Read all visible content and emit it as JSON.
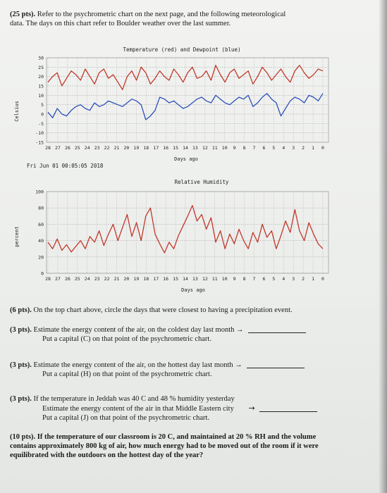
{
  "intro": {
    "points": "(25 pts).",
    "line1": "Refer to the psychrometric chart on the next page, and the following meteorological",
    "line2": "data.  The days on this chart refer to Boulder weather over the last summer."
  },
  "timestamp": "Fri Jun 01 00:05:05 2018",
  "chart_data": [
    {
      "type": "line",
      "title": "Temperature (red) and Dewpoint (blue)",
      "xlabel": "Days ago",
      "ylabel": "Celsius",
      "x_ticks": [
        "28",
        "27",
        "26",
        "25",
        "24",
        "23",
        "22",
        "21",
        "20",
        "19",
        "18",
        "17",
        "16",
        "15",
        "14",
        "13",
        "12",
        "11",
        "10",
        "9",
        "8",
        "7",
        "6",
        "5",
        "4",
        "3",
        "2",
        "1",
        "0"
      ],
      "y_ticks": [
        "30",
        "25",
        "20",
        "15",
        "10",
        "5",
        "0",
        "-5",
        "-10",
        "-15"
      ],
      "ylim": [
        -15,
        30
      ],
      "grid": true,
      "colors": {
        "temperature": "#c0392b",
        "dewpoint": "#2c4fb8"
      },
      "series": [
        {
          "name": "Temperature",
          "color": "#c0392b",
          "values": [
            17,
            20,
            22,
            15,
            19,
            23,
            21,
            18,
            24,
            20,
            16,
            22,
            24,
            19,
            21,
            17,
            13,
            20,
            23,
            18,
            25,
            22,
            16,
            19,
            23,
            20,
            18,
            24,
            21,
            17,
            22,
            25,
            19,
            20,
            23,
            18,
            26,
            21,
            17,
            22,
            24,
            19,
            21,
            23,
            16,
            20,
            25,
            22,
            18,
            21,
            24,
            20,
            17,
            23,
            26,
            22,
            19,
            21,
            24,
            23
          ]
        },
        {
          "name": "Dewpoint",
          "color": "#2c4fb8",
          "values": [
            1,
            -2,
            3,
            0,
            -1,
            2,
            4,
            5,
            3,
            2,
            6,
            4,
            5,
            7,
            6,
            5,
            4,
            6,
            8,
            7,
            5,
            -3,
            -1,
            2,
            9,
            8,
            6,
            7,
            5,
            3,
            4,
            6,
            8,
            9,
            7,
            6,
            10,
            8,
            6,
            5,
            7,
            9,
            8,
            10,
            4,
            6,
            9,
            11,
            8,
            6,
            -1,
            3,
            7,
            9,
            8,
            6,
            10,
            9,
            7,
            11
          ]
        }
      ]
    },
    {
      "type": "line",
      "title": "Relative Humidity",
      "xlabel": "Days ago",
      "ylabel": "percent",
      "x_ticks": [
        "28",
        "27",
        "26",
        "25",
        "24",
        "23",
        "22",
        "21",
        "20",
        "19",
        "18",
        "17",
        "16",
        "15",
        "14",
        "13",
        "12",
        "11",
        "10",
        "9",
        "8",
        "7",
        "6",
        "5",
        "4",
        "3",
        "2",
        "1",
        "0"
      ],
      "y_ticks": [
        "100",
        "80",
        "60",
        "40",
        "20",
        "0"
      ],
      "ylim": [
        0,
        100
      ],
      "grid": true,
      "series": [
        {
          "name": "Relative Humidity",
          "color": "#c0392b",
          "values": [
            38,
            30,
            42,
            28,
            35,
            26,
            33,
            40,
            30,
            45,
            38,
            52,
            34,
            48,
            60,
            40,
            56,
            72,
            45,
            62,
            40,
            70,
            80,
            48,
            36,
            25,
            38,
            30,
            46,
            58,
            70,
            83,
            64,
            72,
            54,
            68,
            38,
            52,
            30,
            48,
            36,
            54,
            40,
            30,
            50,
            38,
            60,
            44,
            52,
            30,
            46,
            64,
            50,
            78,
            52,
            40,
            62,
            48,
            36,
            30
          ]
        }
      ]
    }
  ],
  "questions": [
    {
      "pts": "(6 pts).",
      "lines": [
        "On the top chart above, circle the days that were closest to having a precipitation event."
      ]
    },
    {
      "pts": "(3 pts).",
      "lines": [
        "Estimate the energy content of the air, on the coldest day last month →",
        "Put a capital (C) on that point of the psychrometric chart."
      ]
    },
    {
      "pts": "(3 pts).",
      "lines": [
        "Estimate the energy content of the air, on the hottest day last month →",
        "Put a capital (H) on that point of the psychrometric chart."
      ]
    },
    {
      "pts": "(3 pts).",
      "lines": [
        "If the temperature in Jeddah was 40 C and 48 % humidity yesterday",
        "Estimate the energy content of the air in that Middle Eastern city",
        "Put a capital (J) on that point of the psychrometric chart."
      ]
    },
    {
      "pts": "(10 pts).",
      "lines": [
        "If the temperature of our classroom is 20 C, and maintained at 20 % RH and the volume",
        "contains approximately 800 kg of air, how much energy had to be moved out of the room if it were",
        "equilibrated with the outdoors on the hottest day of the year?"
      ]
    }
  ],
  "arrow": "→"
}
